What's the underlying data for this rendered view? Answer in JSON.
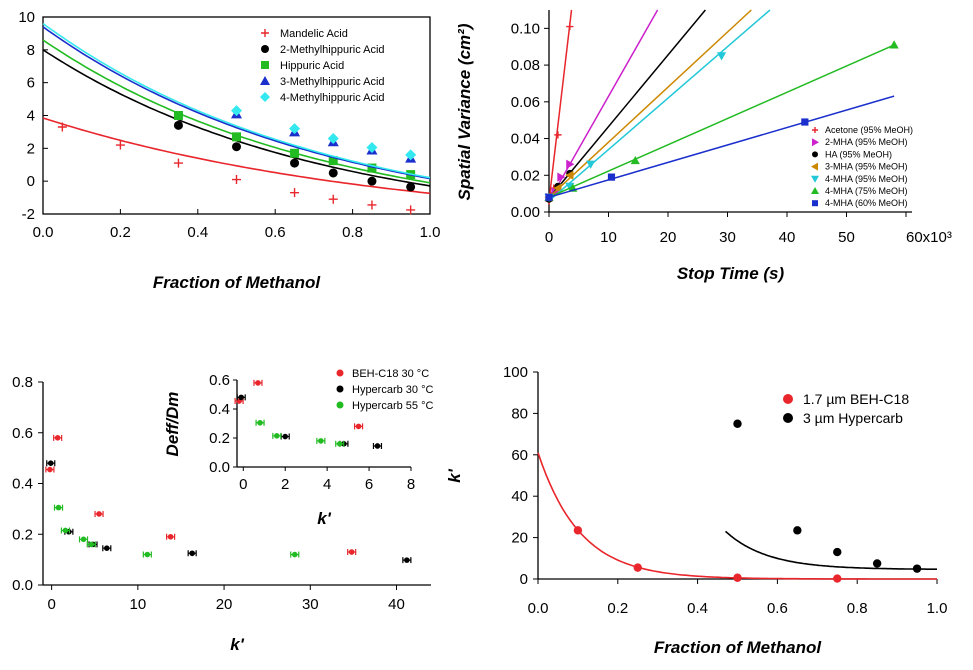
{
  "chart_data": [
    {
      "type": "scatter",
      "panel": "top-left",
      "xlabel": "Fraction of Methanol",
      "ylabel": "",
      "xlim": [
        0,
        1
      ],
      "ylim": [
        -2,
        10
      ],
      "xticks": [
        "0.0",
        "0.2",
        "0.4",
        "0.6",
        "0.8",
        "1.0"
      ],
      "yticks": [
        "-2",
        "0",
        "2",
        "4",
        "6",
        "8",
        "10"
      ],
      "legend_position": "top-right",
      "series": [
        {
          "name": "Mandelic Acid",
          "color": "#e8262b",
          "marker": "plus",
          "x": [
            0.05,
            0.2,
            0.35,
            0.5,
            0.65,
            0.75,
            0.85,
            0.95
          ],
          "y": [
            3.3,
            2.2,
            1.1,
            0.1,
            -0.7,
            -1.1,
            -1.45,
            -1.75
          ],
          "fit": [
            3.85,
            -6.8,
            1.0
          ]
        },
        {
          "name": "2-Methylhippuric Acid",
          "color": "#000000",
          "marker": "circle",
          "x": [
            0.35,
            0.5,
            0.65,
            0.75,
            0.85,
            0.95
          ],
          "y": [
            3.4,
            2.1,
            1.1,
            0.5,
            0.0,
            -0.35
          ],
          "fit": [
            8.0,
            -10.2,
            2.2
          ]
        },
        {
          "name": "Hippuric Acid",
          "color": "#22bb22",
          "marker": "square",
          "x": [
            0.35,
            0.5,
            0.65,
            0.75,
            0.85,
            0.95
          ],
          "y": [
            4.0,
            2.7,
            1.7,
            1.25,
            0.8,
            0.4
          ],
          "fit": [
            8.6,
            -10.0,
            2.2
          ]
        },
        {
          "name": "3-Methylhippuric Acid",
          "color": "#1a2fcc",
          "marker": "triangle-up",
          "x": [
            0.5,
            0.65,
            0.75,
            0.85,
            0.95
          ],
          "y": [
            4.1,
            3.0,
            2.4,
            1.9,
            1.4
          ],
          "fit": [
            9.4,
            -10.3,
            2.2
          ]
        },
        {
          "name": "4-Methylhippuric Acid",
          "color": "#33e8ee",
          "marker": "diamond",
          "x": [
            0.5,
            0.65,
            0.75,
            0.85,
            0.95
          ],
          "y": [
            4.3,
            3.2,
            2.6,
            2.05,
            1.6
          ],
          "fit": [
            9.6,
            -10.1,
            2.2
          ]
        }
      ]
    },
    {
      "type": "scatter",
      "panel": "top-right",
      "xlabel": "Stop Time (s)",
      "ylabel": "Spatial Variance (cm²)",
      "xlim": [
        0,
        60000
      ],
      "ylim": [
        0,
        0.11
      ],
      "xticks": [
        "0",
        "10",
        "20",
        "30",
        "40",
        "50",
        "60x10³"
      ],
      "yticks": [
        "0.00",
        "0.02",
        "0.04",
        "0.06",
        "0.08",
        "0.10"
      ],
      "legend_position": "bottom-right",
      "series": [
        {
          "name": "Acetone (95% MeOH)",
          "color": "#e8262b",
          "marker": "plus",
          "x": [
            0,
            300,
            800,
            1500,
            3500
          ],
          "y": [
            0.006,
            0.009,
            0.013,
            0.042,
            0.101
          ],
          "slope": 2.75e-05,
          "intercept": 0.006
        },
        {
          "name": "2-MHA (95% MeOH)",
          "color": "#cc22cc",
          "marker": "triangle-right",
          "x": [
            0,
            1000,
            2000,
            3500
          ],
          "y": [
            0.008,
            0.011,
            0.019,
            0.026
          ],
          "slope": 5.7e-06,
          "intercept": 0.006
        },
        {
          "name": "HA (95% MeOH)",
          "color": "#000000",
          "marker": "circle",
          "x": [
            0,
            1500,
            3500
          ],
          "y": [
            0.007,
            0.014,
            0.021
          ],
          "slope": 3.9e-06,
          "intercept": 0.0075
        },
        {
          "name": "3-MHA (95% MeOH)",
          "color": "#cc8800",
          "marker": "triangle-left",
          "x": [
            0,
            1500,
            3500
          ],
          "y": [
            0.008,
            0.013,
            0.02
          ],
          "slope": 3e-06,
          "intercept": 0.008
        },
        {
          "name": "4-MHA (95% MeOH)",
          "color": "#22c8d8",
          "marker": "triangle-down",
          "x": [
            0,
            3500,
            7000,
            29000
          ],
          "y": [
            0.008,
            0.014,
            0.026,
            0.085
          ],
          "slope": 2.8e-06,
          "intercept": 0.006
        },
        {
          "name": "4-MHA (75% MeOH)",
          "color": "#22bb22",
          "marker": "triangle-up",
          "x": [
            0,
            4000,
            14500,
            58000
          ],
          "y": [
            0.008,
            0.013,
            0.028,
            0.091
          ],
          "slope": 1.43e-06,
          "intercept": 0.008
        },
        {
          "name": "4-MHA (60% MeOH)",
          "color": "#1a2fcc",
          "marker": "square",
          "x": [
            0,
            10500,
            43000
          ],
          "y": [
            0.008,
            0.019,
            0.049
          ],
          "slope": 9.5e-07,
          "intercept": 0.008
        }
      ]
    },
    {
      "type": "scatter",
      "panel": "bottom-left",
      "xlabel": "k'",
      "ylabel": "",
      "xlim": [
        -1,
        44
      ],
      "ylim": [
        0,
        0.8
      ],
      "xticks": [
        "0",
        "10",
        "20",
        "30",
        "40"
      ],
      "yticks": [
        "0.0",
        "0.2",
        "0.4",
        "0.6",
        "0.8"
      ],
      "legend_position": "top-right (inside inset)",
      "series": [
        {
          "name": "BEH-C18 30 °C",
          "color": "#e8262b",
          "marker": "circle-errorbar",
          "x": [
            -0.2,
            0.7,
            5.5,
            13.8,
            34.8
          ],
          "y": [
            0.455,
            0.58,
            0.28,
            0.19,
            0.13
          ]
        },
        {
          "name": "Hypercarb 30 °C",
          "color": "#000000",
          "marker": "circle-errorbar",
          "x": [
            -0.1,
            2.0,
            4.8,
            6.4,
            16.3,
            41.2
          ],
          "y": [
            0.48,
            0.21,
            0.16,
            0.145,
            0.125,
            0.098
          ]
        },
        {
          "name": "Hypercarb 55 °C",
          "color": "#22bb22",
          "marker": "circle-errorbar",
          "x": [
            0.8,
            1.6,
            3.7,
            4.6,
            11.1,
            28.2
          ],
          "y": [
            0.305,
            0.215,
            0.18,
            0.16,
            0.12,
            0.12
          ]
        }
      ],
      "inset": {
        "xlabel": "k'",
        "ylabel": "Deff/Dm",
        "xlim": [
          -0.3,
          8
        ],
        "ylim": [
          0,
          0.6
        ],
        "xticks": [
          "0",
          "2",
          "4",
          "6",
          "8"
        ],
        "yticks": [
          "0.0",
          "0.2",
          "0.4",
          "0.6"
        ],
        "series_refs": [
          "BEH-C18 30 °C",
          "Hypercarb 30 °C",
          "Hypercarb 55 °C"
        ]
      }
    },
    {
      "type": "scatter",
      "panel": "bottom-right",
      "xlabel": "Fraction of Methanol",
      "ylabel": "k'",
      "xlim": [
        0,
        1
      ],
      "ylim": [
        0,
        100
      ],
      "xticks": [
        "0.0",
        "0.2",
        "0.4",
        "0.6",
        "0.8",
        "1.0"
      ],
      "yticks": [
        "0",
        "20",
        "40",
        "60",
        "80",
        "100"
      ],
      "legend_position": "top-right",
      "series": [
        {
          "name": "1.7 µm BEH-C18",
          "color": "#e8262b",
          "marker": "circle",
          "x": [
            0.1,
            0.25,
            0.5,
            0.75
          ],
          "y": [
            23.5,
            5.5,
            0.6,
            0.2
          ]
        },
        {
          "name": "3 µm Hypercarb",
          "color": "#000000",
          "marker": "circle",
          "x": [
            0.5,
            0.65,
            0.75,
            0.85,
            0.95
          ],
          "y": [
            75,
            23.5,
            13,
            7.5,
            5
          ]
        }
      ]
    }
  ]
}
